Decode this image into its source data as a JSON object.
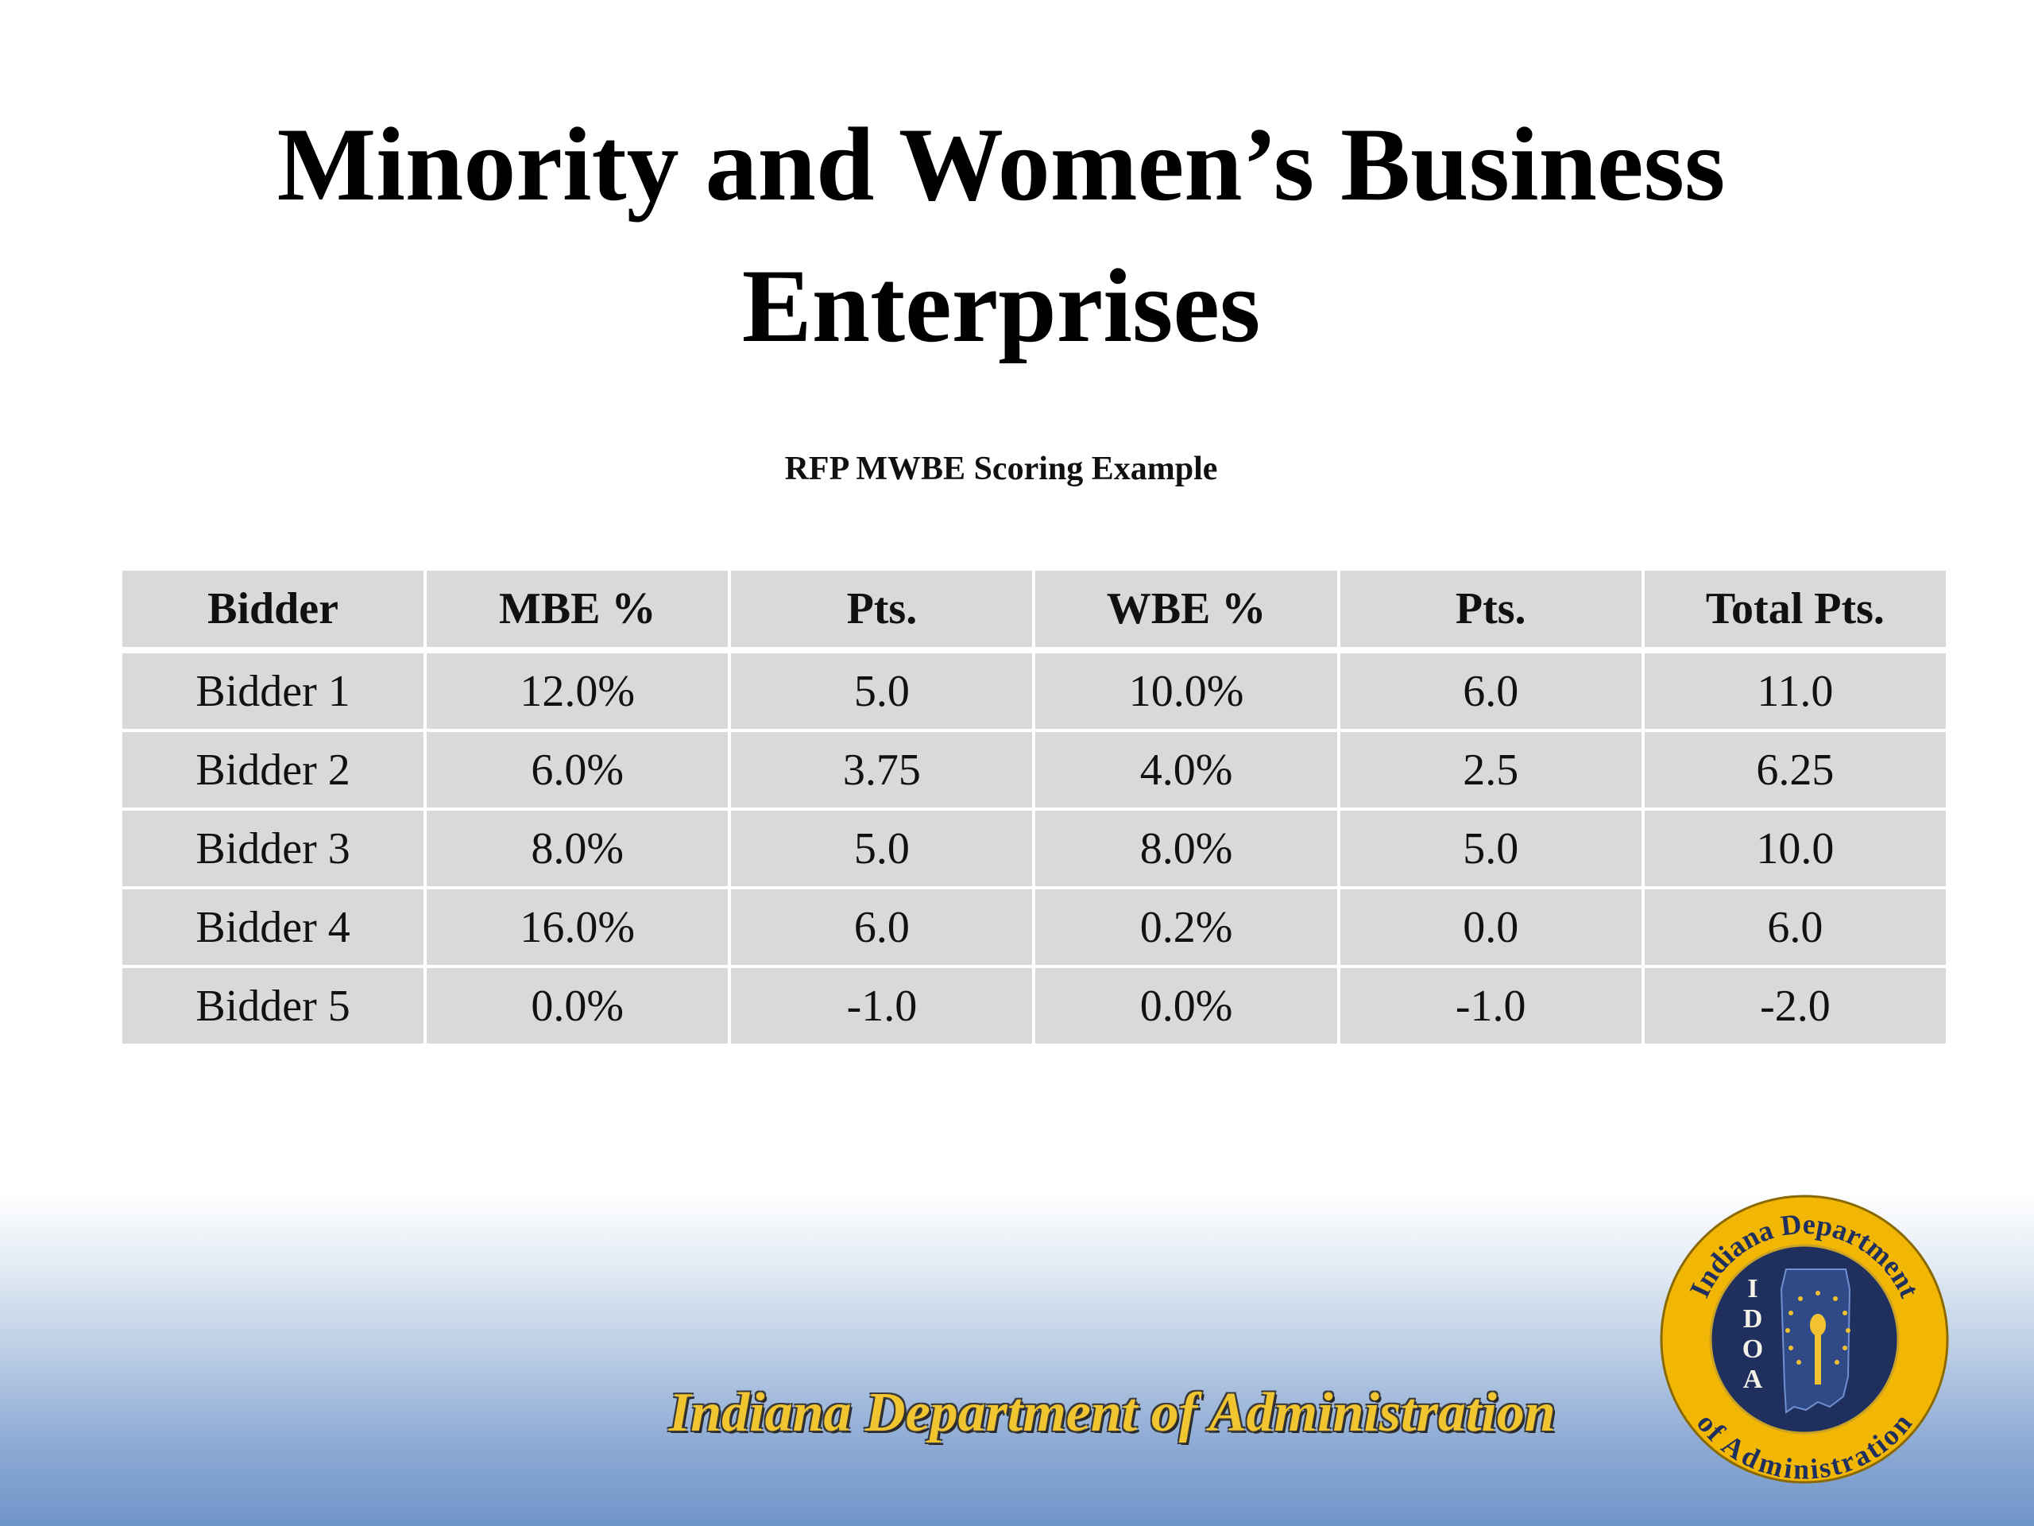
{
  "slide": {
    "title_line1": "Minority and Women’s Business",
    "title_line2": "Enterprises",
    "subtitle": "RFP MWBE Scoring Example"
  },
  "table": {
    "headers": [
      "Bidder",
      "MBE %",
      "Pts.",
      "WBE %",
      "Pts.",
      "Total Pts."
    ],
    "rows": [
      [
        "Bidder 1",
        "12.0%",
        "5.0",
        "10.0%",
        "6.0",
        "11.0"
      ],
      [
        "Bidder 2",
        "6.0%",
        "3.75",
        "4.0%",
        "2.5",
        "6.25"
      ],
      [
        "Bidder 3",
        "8.0%",
        "5.0",
        "8.0%",
        "5.0",
        "10.0"
      ],
      [
        "Bidder 4",
        "16.0%",
        "6.0",
        "0.2%",
        "0.0",
        "6.0"
      ],
      [
        "Bidder 5",
        "0.0%",
        "-1.0",
        "0.0%",
        "-1.0",
        "-2.0"
      ]
    ]
  },
  "footer": {
    "agency_name": "Indiana Department of Administration",
    "seal_text_top": "Indiana Department",
    "seal_text_bottom": "of Administration",
    "seal_letters": [
      "I",
      "D",
      "O",
      "A"
    ]
  },
  "colors": {
    "table_cell": "#d9d9d9",
    "footer_gold": "#f0c530",
    "seal_navy": "#1f2f5e",
    "seal_ring": "#f2b705",
    "gradient_bottom": "#6f94c8"
  }
}
